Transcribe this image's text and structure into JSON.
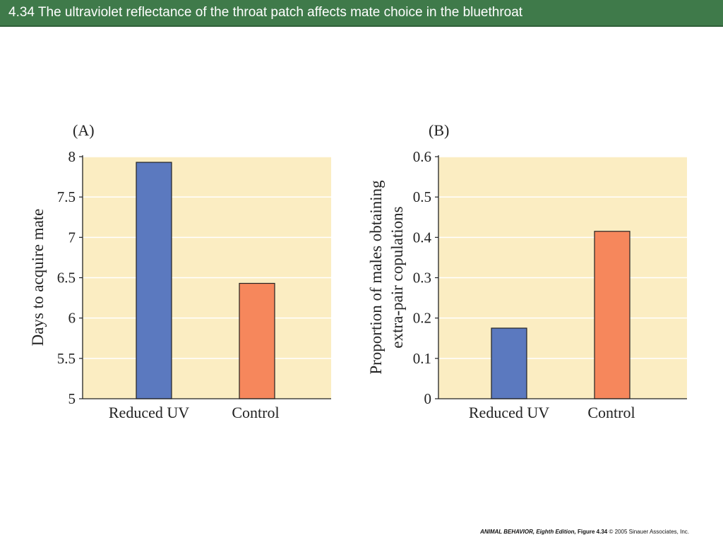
{
  "slide": {
    "title": "4.34  The ultraviolet reflectance of the throat patch affects mate choice in the bluethroat"
  },
  "footer": {
    "book": "ANIMAL BEHAVIOR, Eighth Edition,",
    "figure": " Figure 4.34",
    "copyright": "  © 2005 Sinauer Associates, Inc."
  },
  "colors": {
    "title_bar": "#3f7a4a",
    "plot_background": "#fbedc2",
    "reduced_uv": "#5b79bf",
    "control": "#f6875c"
  },
  "chart_data": [
    {
      "type": "bar",
      "panel": "(A)",
      "categories": [
        "Reduced UV",
        "Control"
      ],
      "values": [
        7.93,
        6.43
      ],
      "bar_colors": [
        "#5b79bf",
        "#f6875c"
      ],
      "xlabel": "",
      "ylabel": "Days to acquire mate",
      "ylim": [
        5,
        8
      ],
      "yticks": [
        5,
        5.5,
        6,
        6.5,
        7,
        7.5,
        8
      ],
      "ytick_labels": [
        "5",
        "5.5",
        "6",
        "6.5",
        "7",
        "7.5",
        "8"
      ],
      "grid": true
    },
    {
      "type": "bar",
      "panel": "(B)",
      "categories": [
        "Reduced UV",
        "Control"
      ],
      "values": [
        0.175,
        0.415
      ],
      "bar_colors": [
        "#5b79bf",
        "#f6875c"
      ],
      "xlabel": "",
      "ylabel": [
        "Proportion of males obtaining",
        "extra-pair copulations"
      ],
      "ylim": [
        0,
        0.6
      ],
      "yticks": [
        0,
        0.1,
        0.2,
        0.3,
        0.4,
        0.5,
        0.6
      ],
      "ytick_labels": [
        "0",
        "0.1",
        "0.2",
        "0.3",
        "0.4",
        "0.5",
        "0.6"
      ],
      "grid": true
    }
  ]
}
